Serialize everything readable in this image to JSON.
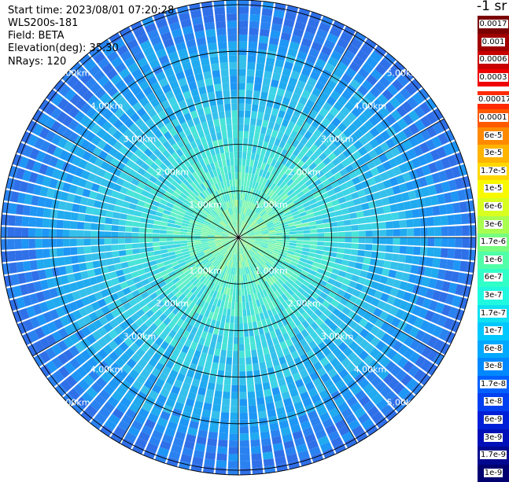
{
  "header": {
    "start_time": "Start time: 2023/08/01 07:20:28",
    "instrument": "WLS200s-181",
    "field": "Field: BETA",
    "elevation": "Elevation(deg): 35.30",
    "nrays": "NRays: 120"
  },
  "colorbar": {
    "title": "-1 sr",
    "labels": [
      "0.0017",
      "0.001",
      "0.0006",
      "0.0003",
      "0.00017",
      "0.0001",
      "6e-5",
      "3e-5",
      "1.7e-5",
      "1e-5",
      "6e-6",
      "3e-6",
      "1.7e-6",
      "1e-6",
      "6e-7",
      "3e-7",
      "1.7e-7",
      "1e-7",
      "6e-8",
      "3e-8",
      "1.7e-8",
      "1e-8",
      "6e-9",
      "3e-9",
      "1.7e-9",
      "1e-9"
    ],
    "colors": [
      "#7a0000",
      "#a00000",
      "#c80000",
      "#f00000",
      "#ff2a00",
      "#ff5a00",
      "#ff8a00",
      "#ffb400",
      "#ffd800",
      "#f8f800",
      "#d8ff20",
      "#a8ff50",
      "#78ff80",
      "#50ffa8",
      "#30ffc8",
      "#20f8e0",
      "#10e0f0",
      "#00c8ff",
      "#00a8ff",
      "#0088ff",
      "#0060ff",
      "#0040f0",
      "#0020d8",
      "#0010b8",
      "#000890",
      "#000070"
    ]
  },
  "range_labels": [
    "1.00km",
    "2.00km",
    "3.00km",
    "4.00km",
    "5.00km"
  ],
  "chart_data": {
    "type": "heatmap",
    "title": "",
    "field": "BETA",
    "units": "-1 sr",
    "elevation_deg": 35.3,
    "n_rays": 120,
    "range_rings_km": [
      1,
      2,
      3,
      4,
      5
    ],
    "max_range_km": 5.1,
    "azimuth_spokes_deg": [
      0,
      30,
      60,
      90,
      120,
      150,
      180,
      210,
      240,
      270,
      300,
      330
    ],
    "color_scale": "log",
    "value_range": [
      1e-09,
      0.0017
    ]
  }
}
